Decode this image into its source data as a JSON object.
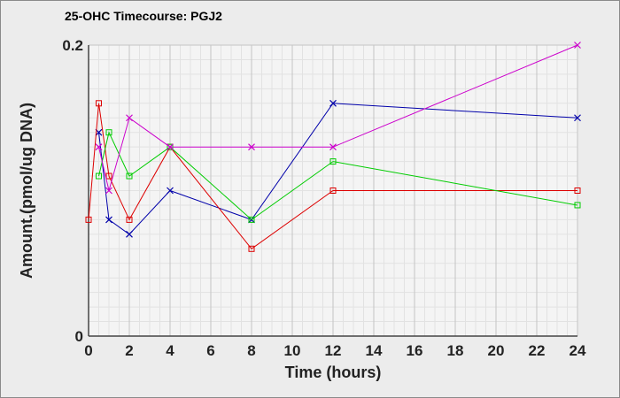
{
  "title": "25-OHC Timecourse: PGJ2",
  "chart_data": {
    "type": "line",
    "title": "25-OHC Timecourse: PGJ2",
    "xlabel": "Time (hours)",
    "ylabel": "Amount.(pmol/ug DNA)",
    "xlim": [
      0,
      24
    ],
    "ylim": [
      0,
      0.2
    ],
    "x_ticks": [
      0,
      2,
      4,
      6,
      8,
      10,
      12,
      14,
      16,
      18,
      20,
      22,
      24
    ],
    "y_tick_labels": [
      "0",
      "0.2"
    ],
    "y_ticks": [
      0,
      0.2
    ],
    "grid": true,
    "background": "#f4f4f4",
    "series": [
      {
        "color": "#0000aa",
        "marker": "x",
        "x": [
          0.5,
          1,
          2,
          4,
          8,
          12,
          24
        ],
        "y": [
          0.14,
          0.08,
          0.07,
          0.1,
          0.08,
          0.16,
          0.15
        ]
      },
      {
        "color": "#dd0000",
        "marker": "square",
        "x": [
          0,
          0.5,
          1,
          2,
          4,
          8,
          12,
          24
        ],
        "y": [
          0.08,
          0.16,
          0.11,
          0.08,
          0.13,
          0.06,
          0.1,
          0.1
        ]
      },
      {
        "color": "#00cc00",
        "marker": "square",
        "x": [
          0.5,
          1,
          2,
          4,
          8,
          12,
          24
        ],
        "y": [
          0.11,
          0.14,
          0.11,
          0.13,
          0.08,
          0.12,
          0.09
        ]
      },
      {
        "color": "#cc00cc",
        "marker": "x",
        "x": [
          0.5,
          1,
          2,
          4,
          8,
          12,
          24
        ],
        "y": [
          0.13,
          0.1,
          0.15,
          0.13,
          0.13,
          0.13,
          0.2
        ]
      }
    ]
  }
}
